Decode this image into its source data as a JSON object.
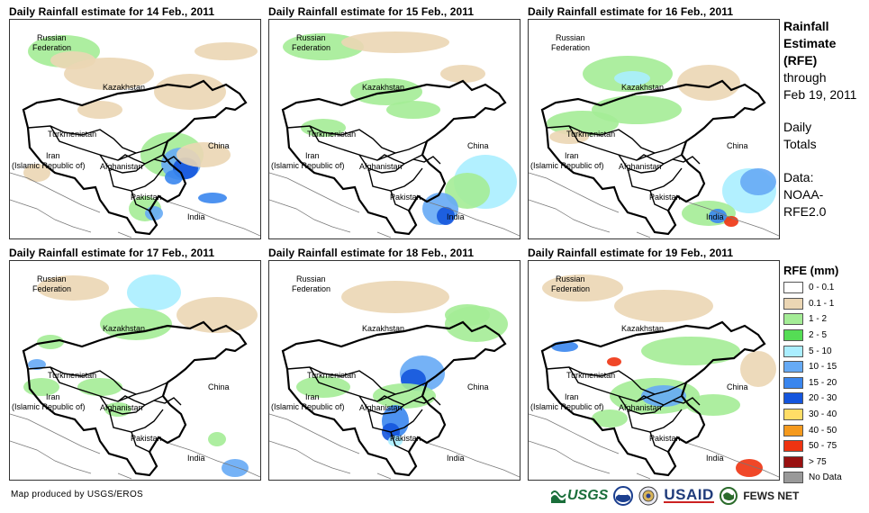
{
  "panels": [
    {
      "title": "Daily Rainfall estimate for 14 Feb., 2011"
    },
    {
      "title": "Daily Rainfall estimate for 15 Feb., 2011"
    },
    {
      "title": "Daily Rainfall estimate for 16 Feb., 2011"
    },
    {
      "title": "Daily Rainfall estimate for 17 Feb., 2011"
    },
    {
      "title": "Daily Rainfall estimate for 18 Feb., 2011"
    },
    {
      "title": "Daily Rainfall estimate for 19 Feb., 2011"
    }
  ],
  "map_labels": {
    "russia_1": "Russian",
    "russia_2": "Federation",
    "kazakhstan": "Kazakhstan",
    "turkmenistan": "Turkmenistan",
    "iran_1": "Iran",
    "iran_2": "(Islamic Republic of)",
    "afghanistan": "Afghanistan",
    "pakistan": "Pakistan",
    "china": "China",
    "india": "India"
  },
  "side": {
    "title_1": "Rainfall",
    "title_2": "Estimate",
    "title_3": "(RFE)",
    "through": "through",
    "date": "Feb 19, 2011",
    "daily": "Daily",
    "totals": "Totals",
    "data": "Data:",
    "source_1": "NOAA-",
    "source_2": "RFE2.0"
  },
  "legend": {
    "title": "RFE (mm)",
    "items": [
      {
        "label": "0 - 0.1",
        "color": "#ffffff"
      },
      {
        "label": "0.1 - 1",
        "color": "#ebd6b4"
      },
      {
        "label": "1 - 2",
        "color": "#a4ec96"
      },
      {
        "label": "2 - 5",
        "color": "#55dd55"
      },
      {
        "label": "5 - 10",
        "color": "#aaeeff"
      },
      {
        "label": "10 - 15",
        "color": "#66aaf5"
      },
      {
        "label": "15 - 20",
        "color": "#3a86ee"
      },
      {
        "label": "20 - 30",
        "color": "#1455dd"
      },
      {
        "label": "30 - 40",
        "color": "#ffdd66"
      },
      {
        "label": "40 - 50",
        "color": "#f59a1e"
      },
      {
        "label": "50 - 75",
        "color": "#ee3311"
      },
      {
        "label": "> 75",
        "color": "#991111"
      },
      {
        "label": "No Data",
        "color": "#999999"
      }
    ]
  },
  "credit": "Map produced by USGS/EROS",
  "logos": {
    "usgs": "USGS",
    "usaid": "USAID",
    "fews": "FEWS NET"
  }
}
